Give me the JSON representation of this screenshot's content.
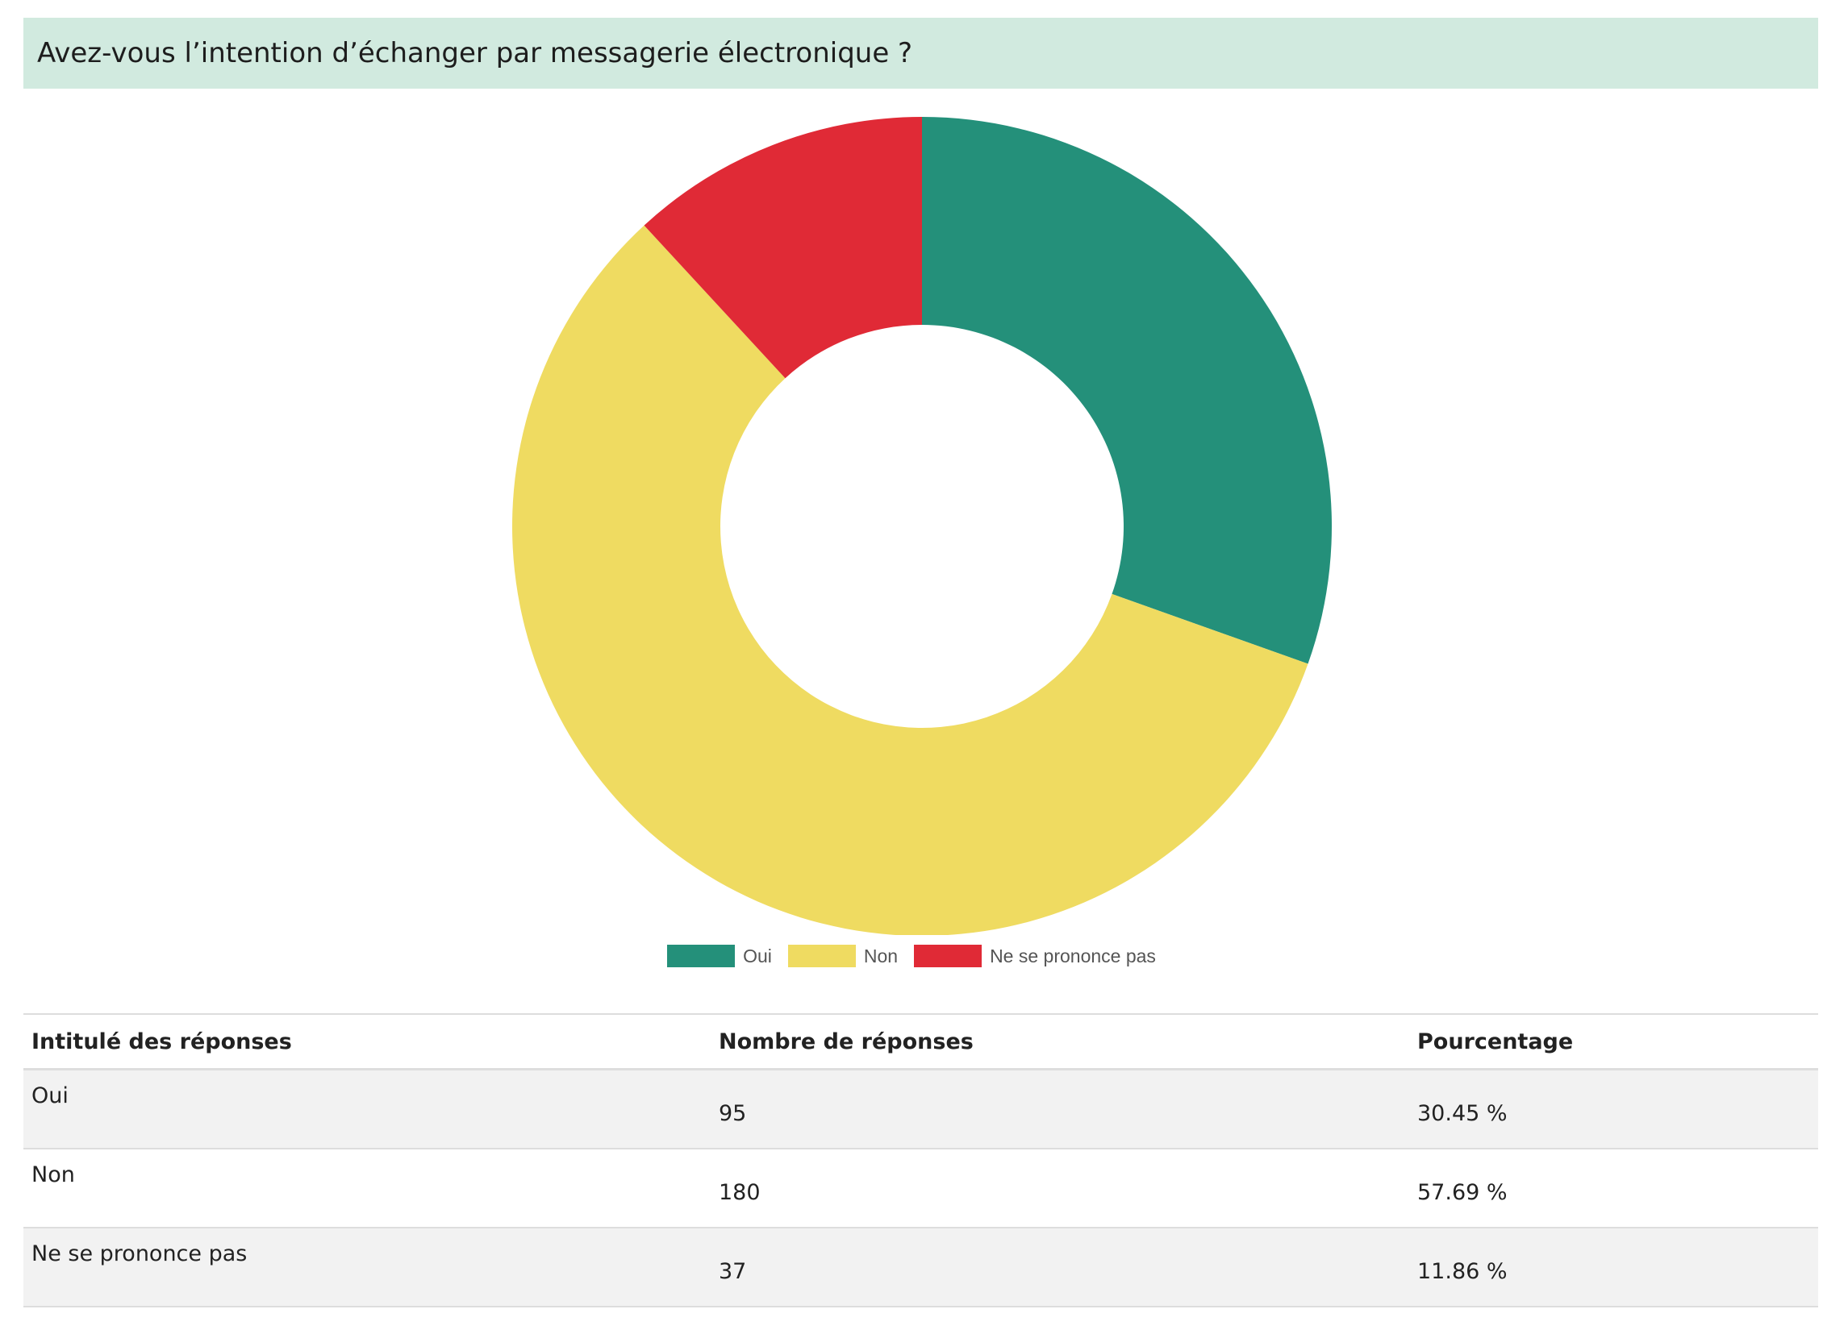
{
  "question": {
    "title": "Avez-vous l’intention d’échanger par messagerie électronique ?"
  },
  "chart_data": {
    "type": "pie",
    "style": "donut",
    "title": "",
    "categories": [
      "Oui",
      "Non",
      "Ne se prononce pas"
    ],
    "values": [
      95,
      180,
      37
    ],
    "percentages": [
      30.45,
      57.69,
      11.86
    ],
    "colors": [
      "#24907a",
      "#efdb61",
      "#e02a36"
    ],
    "legend": {
      "position": "bottom",
      "entries": [
        "Oui",
        "Non",
        "Ne se prononce pas"
      ]
    }
  },
  "table": {
    "headers": [
      "Intitulé des réponses",
      "Nombre de réponses",
      "Pourcentage"
    ],
    "rows": [
      {
        "label": "Oui",
        "count": "95",
        "percent": "30.45 %"
      },
      {
        "label": "Non",
        "count": "180",
        "percent": "57.69 %"
      },
      {
        "label": "Ne se prononce pas",
        "count": "37",
        "percent": "11.86 %"
      }
    ]
  }
}
